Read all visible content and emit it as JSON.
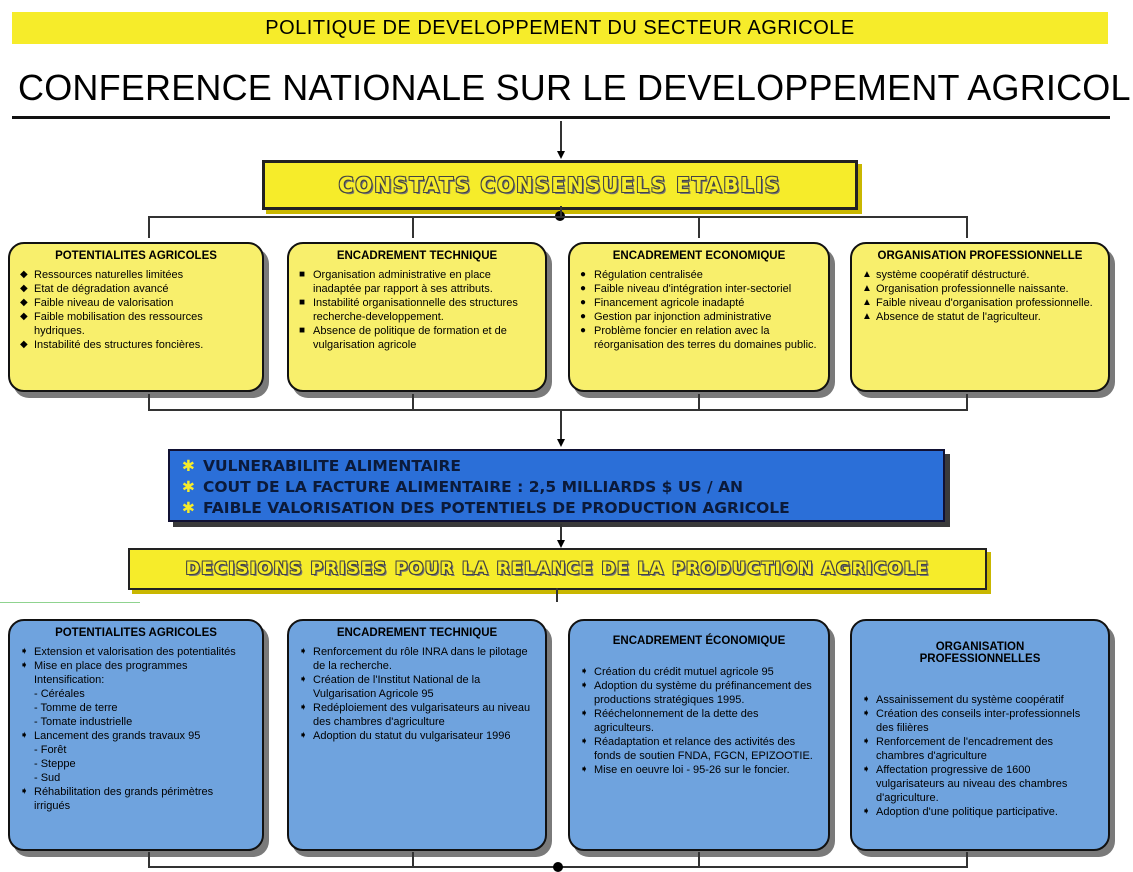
{
  "header": {
    "top_banner": "POLITIQUE DE DEVELOPPEMENT DU SECTEUR AGRICOLE",
    "main_title": "CONFERENCE NATIONALE SUR LE DEVELOPPEMENT AGRICOLE"
  },
  "constats": {
    "title": "CONSTATS CONSENSUELS ETABLIS",
    "cards": [
      {
        "title": "POTENTIALITES AGRICOLES",
        "bullet": "◆",
        "items": [
          "Ressources naturelles limitées",
          "Etat de dégradation avancé",
          "Faible niveau de valorisation",
          "Faible mobilisation des ressources hydriques.",
          "Instabilité des structures foncières."
        ]
      },
      {
        "title": "ENCADREMENT TECHNIQUE",
        "bullet": "■",
        "items": [
          "Organisation administrative en place inadaptée par rapport à ses attributs.",
          "Instabilité organisationnelle des structures recherche-developpement.",
          "Absence de politique de formation et de vulgarisation agricole"
        ]
      },
      {
        "title": "ENCADREMENT ECONOMIQUE",
        "bullet": "●",
        "items": [
          "Régulation centralisée",
          "Faible niveau d'intégration inter-sectoriel",
          "Financement agricole inadapté",
          "Gestion par injonction administrative",
          "Problème foncier en relation avec la réorganisation des terres du domaines public."
        ]
      },
      {
        "title": "ORGANISATION PROFESSIONNELLE",
        "bullet": "▲",
        "items": [
          "système coopératif déstructuré.",
          "Organisation professionnelle naissante.",
          "Faible niveau d'organisation professionnelle.",
          "Absence de statut de l'agriculteur."
        ]
      }
    ]
  },
  "constraints": {
    "star": "✱",
    "lines": [
      "VULNERABILITE ALIMENTAIRE",
      "COUT DE LA FACTURE ALIMENTAIRE : 2,5 MILLIARDS $ US / AN",
      "FAIBLE VALORISATION DES POTENTIELS DE PRODUCTION AGRICOLE"
    ]
  },
  "decisions": {
    "title": "DECISIONS PRISES POUR LA RELANCE DE LA PRODUCTION AGRICOLE",
    "cards": [
      {
        "title": "POTENTIALITES AGRICOLES",
        "bullet": "➧",
        "items": [
          {
            "t": "Extension et valorisation des potentialités",
            "b": true
          },
          {
            "t": "Mise en place des programmes Intensification:",
            "b": true
          },
          {
            "t": "- Céréales",
            "b": false
          },
          {
            "t": "- Tomme de terre",
            "b": false
          },
          {
            "t": "- Tomate industrielle",
            "b": false
          },
          {
            "t": "Lancement des grands travaux 95",
            "b": true
          },
          {
            "t": "- Forêt",
            "b": false
          },
          {
            "t": "- Steppe",
            "b": false
          },
          {
            "t": "- Sud",
            "b": false
          },
          {
            "t": "Réhabilitation des grands périmètres irrigués",
            "b": true
          }
        ]
      },
      {
        "title": "ENCADREMENT TECHNIQUE",
        "bullet": "➧",
        "items": [
          {
            "t": "Renforcement du rôle INRA dans le pilotage de la recherche.",
            "b": true
          },
          {
            "t": "Création de l'Institut National de la Vulgarisation Agricole 95",
            "b": true
          },
          {
            "t": "Redéploiement des vulgarisateurs au niveau des chambres d'agriculture",
            "b": true
          },
          {
            "t": "Adoption du statut du vulgarisateur 1996",
            "b": true
          }
        ]
      },
      {
        "title": "ENCADREMENT ÉCONOMIQUE",
        "bullet": "➧",
        "items": [
          {
            "t": "Création du crédit mutuel agricole 95",
            "b": true
          },
          {
            "t": "Adoption du système du préfinancement des productions stratégiques 1995.",
            "b": true
          },
          {
            "t": "Rééchelonnement de la dette des agriculteurs.",
            "b": true
          },
          {
            "t": "Réadaptation et relance des activités des fonds de soutien FNDA, FGCN, EPIZOOTIE.",
            "b": true
          },
          {
            "t": "Mise en oeuvre loi - 95-26 sur le foncier.",
            "b": true
          }
        ]
      },
      {
        "title": "ORGANISATION PROFESSIONNELLES",
        "bullet": "➧",
        "items": [
          {
            "t": "Assainissement du système coopératif",
            "b": true
          },
          {
            "t": "Création des conseils inter-professionnels des filières",
            "b": true
          },
          {
            "t": "Renforcement de l'encadrement des chambres d'agriculture",
            "b": true
          },
          {
            "t": "Affectation progressive de 1600 vulgarisateurs au niveau des chambres d'agriculture.",
            "b": true
          },
          {
            "t": "Adoption d'une politique participative.",
            "b": true
          }
        ]
      }
    ]
  }
}
